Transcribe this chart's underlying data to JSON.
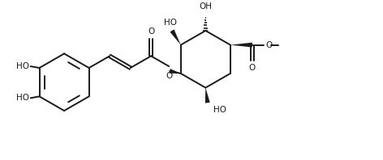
{
  "bg_color": "#ffffff",
  "line_color": "#1a1a1a",
  "line_width": 1.4,
  "font_size": 7.5,
  "fig_w": 4.72,
  "fig_h": 1.98,
  "dpi": 100,
  "xlim": [
    0,
    9.5
  ],
  "ylim": [
    0,
    4.0
  ]
}
